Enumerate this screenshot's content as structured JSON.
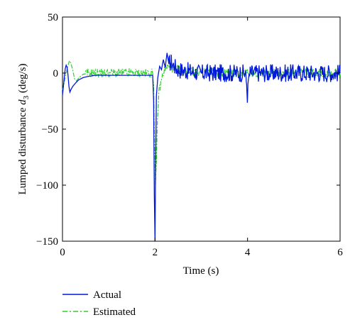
{
  "chart_data": {
    "type": "line",
    "title": "",
    "xlabel": "Time (s)",
    "ylabel_prefix": "Lumped disturbance ",
    "ylabel_var": "d",
    "ylabel_sub": "3",
    "ylabel_unit": " (deg/s)",
    "xlim": [
      0,
      6
    ],
    "ylim": [
      -150,
      50
    ],
    "xticks": [
      "0",
      "2",
      "4",
      "6"
    ],
    "yticks": [
      "50",
      "0",
      "−50",
      "−100",
      "−150"
    ],
    "grid": false,
    "legend_position": "bottom-left, below plot",
    "colors": {
      "actual": "#0018d8",
      "estimated": "#33cc33"
    },
    "series": [
      {
        "name": "Actual",
        "style": "solid",
        "points": [
          [
            0.0,
            -20
          ],
          [
            0.02,
            -12
          ],
          [
            0.04,
            -3
          ],
          [
            0.06,
            4
          ],
          [
            0.08,
            7
          ],
          [
            0.1,
            5
          ],
          [
            0.12,
            -2
          ],
          [
            0.14,
            -12
          ],
          [
            0.16,
            -17
          ],
          [
            0.18,
            -15
          ],
          [
            0.22,
            -12
          ],
          [
            0.28,
            -9
          ],
          [
            0.35,
            -6
          ],
          [
            0.45,
            -4
          ],
          [
            0.55,
            -3
          ],
          [
            0.7,
            -2
          ],
          [
            1.0,
            -2
          ],
          [
            1.5,
            -2
          ],
          [
            1.95,
            -2
          ],
          [
            1.97,
            -25
          ],
          [
            1.985,
            -110
          ],
          [
            2.0,
            -150
          ],
          [
            2.01,
            -95
          ],
          [
            2.03,
            -20
          ],
          [
            2.06,
            -4
          ],
          [
            2.1,
            6
          ],
          [
            2.14,
            3
          ],
          [
            2.18,
            12
          ],
          [
            2.22,
            5
          ],
          [
            2.26,
            18
          ],
          [
            2.3,
            8
          ],
          [
            2.35,
            10
          ],
          [
            2.42,
            6
          ],
          [
            2.5,
            3
          ],
          [
            3.0,
            0
          ],
          [
            3.5,
            0
          ],
          [
            3.95,
            0
          ],
          [
            3.98,
            -10
          ],
          [
            4.0,
            -22
          ],
          [
            4.02,
            -5
          ],
          [
            4.05,
            0
          ],
          [
            5.0,
            0
          ],
          [
            6.0,
            0
          ]
        ],
        "noise_from_x": 2.3,
        "noise_amplitude": 8
      },
      {
        "name": "Estimated",
        "style": "dash-dot",
        "points": [
          [
            0.0,
            -15
          ],
          [
            0.04,
            -8
          ],
          [
            0.08,
            0
          ],
          [
            0.12,
            7
          ],
          [
            0.15,
            11
          ],
          [
            0.18,
            9
          ],
          [
            0.22,
            3
          ],
          [
            0.26,
            -5
          ],
          [
            0.3,
            -7
          ],
          [
            0.36,
            -4
          ],
          [
            0.45,
            -1
          ],
          [
            0.6,
            0
          ],
          [
            1.0,
            0
          ],
          [
            1.5,
            0
          ],
          [
            1.95,
            0
          ],
          [
            1.97,
            -10
          ],
          [
            1.99,
            -60
          ],
          [
            2.01,
            -100
          ],
          [
            2.03,
            -80
          ],
          [
            2.05,
            -45
          ],
          [
            2.08,
            -18
          ],
          [
            2.11,
            -12
          ],
          [
            2.15,
            -4
          ],
          [
            2.2,
            3
          ],
          [
            2.28,
            6
          ],
          [
            2.4,
            4
          ],
          [
            2.6,
            2
          ],
          [
            3.0,
            1
          ],
          [
            4.0,
            0
          ],
          [
            5.0,
            0
          ],
          [
            6.0,
            0
          ]
        ],
        "noise_from_x": 0.5,
        "noise_amplitude": 4
      }
    ]
  }
}
